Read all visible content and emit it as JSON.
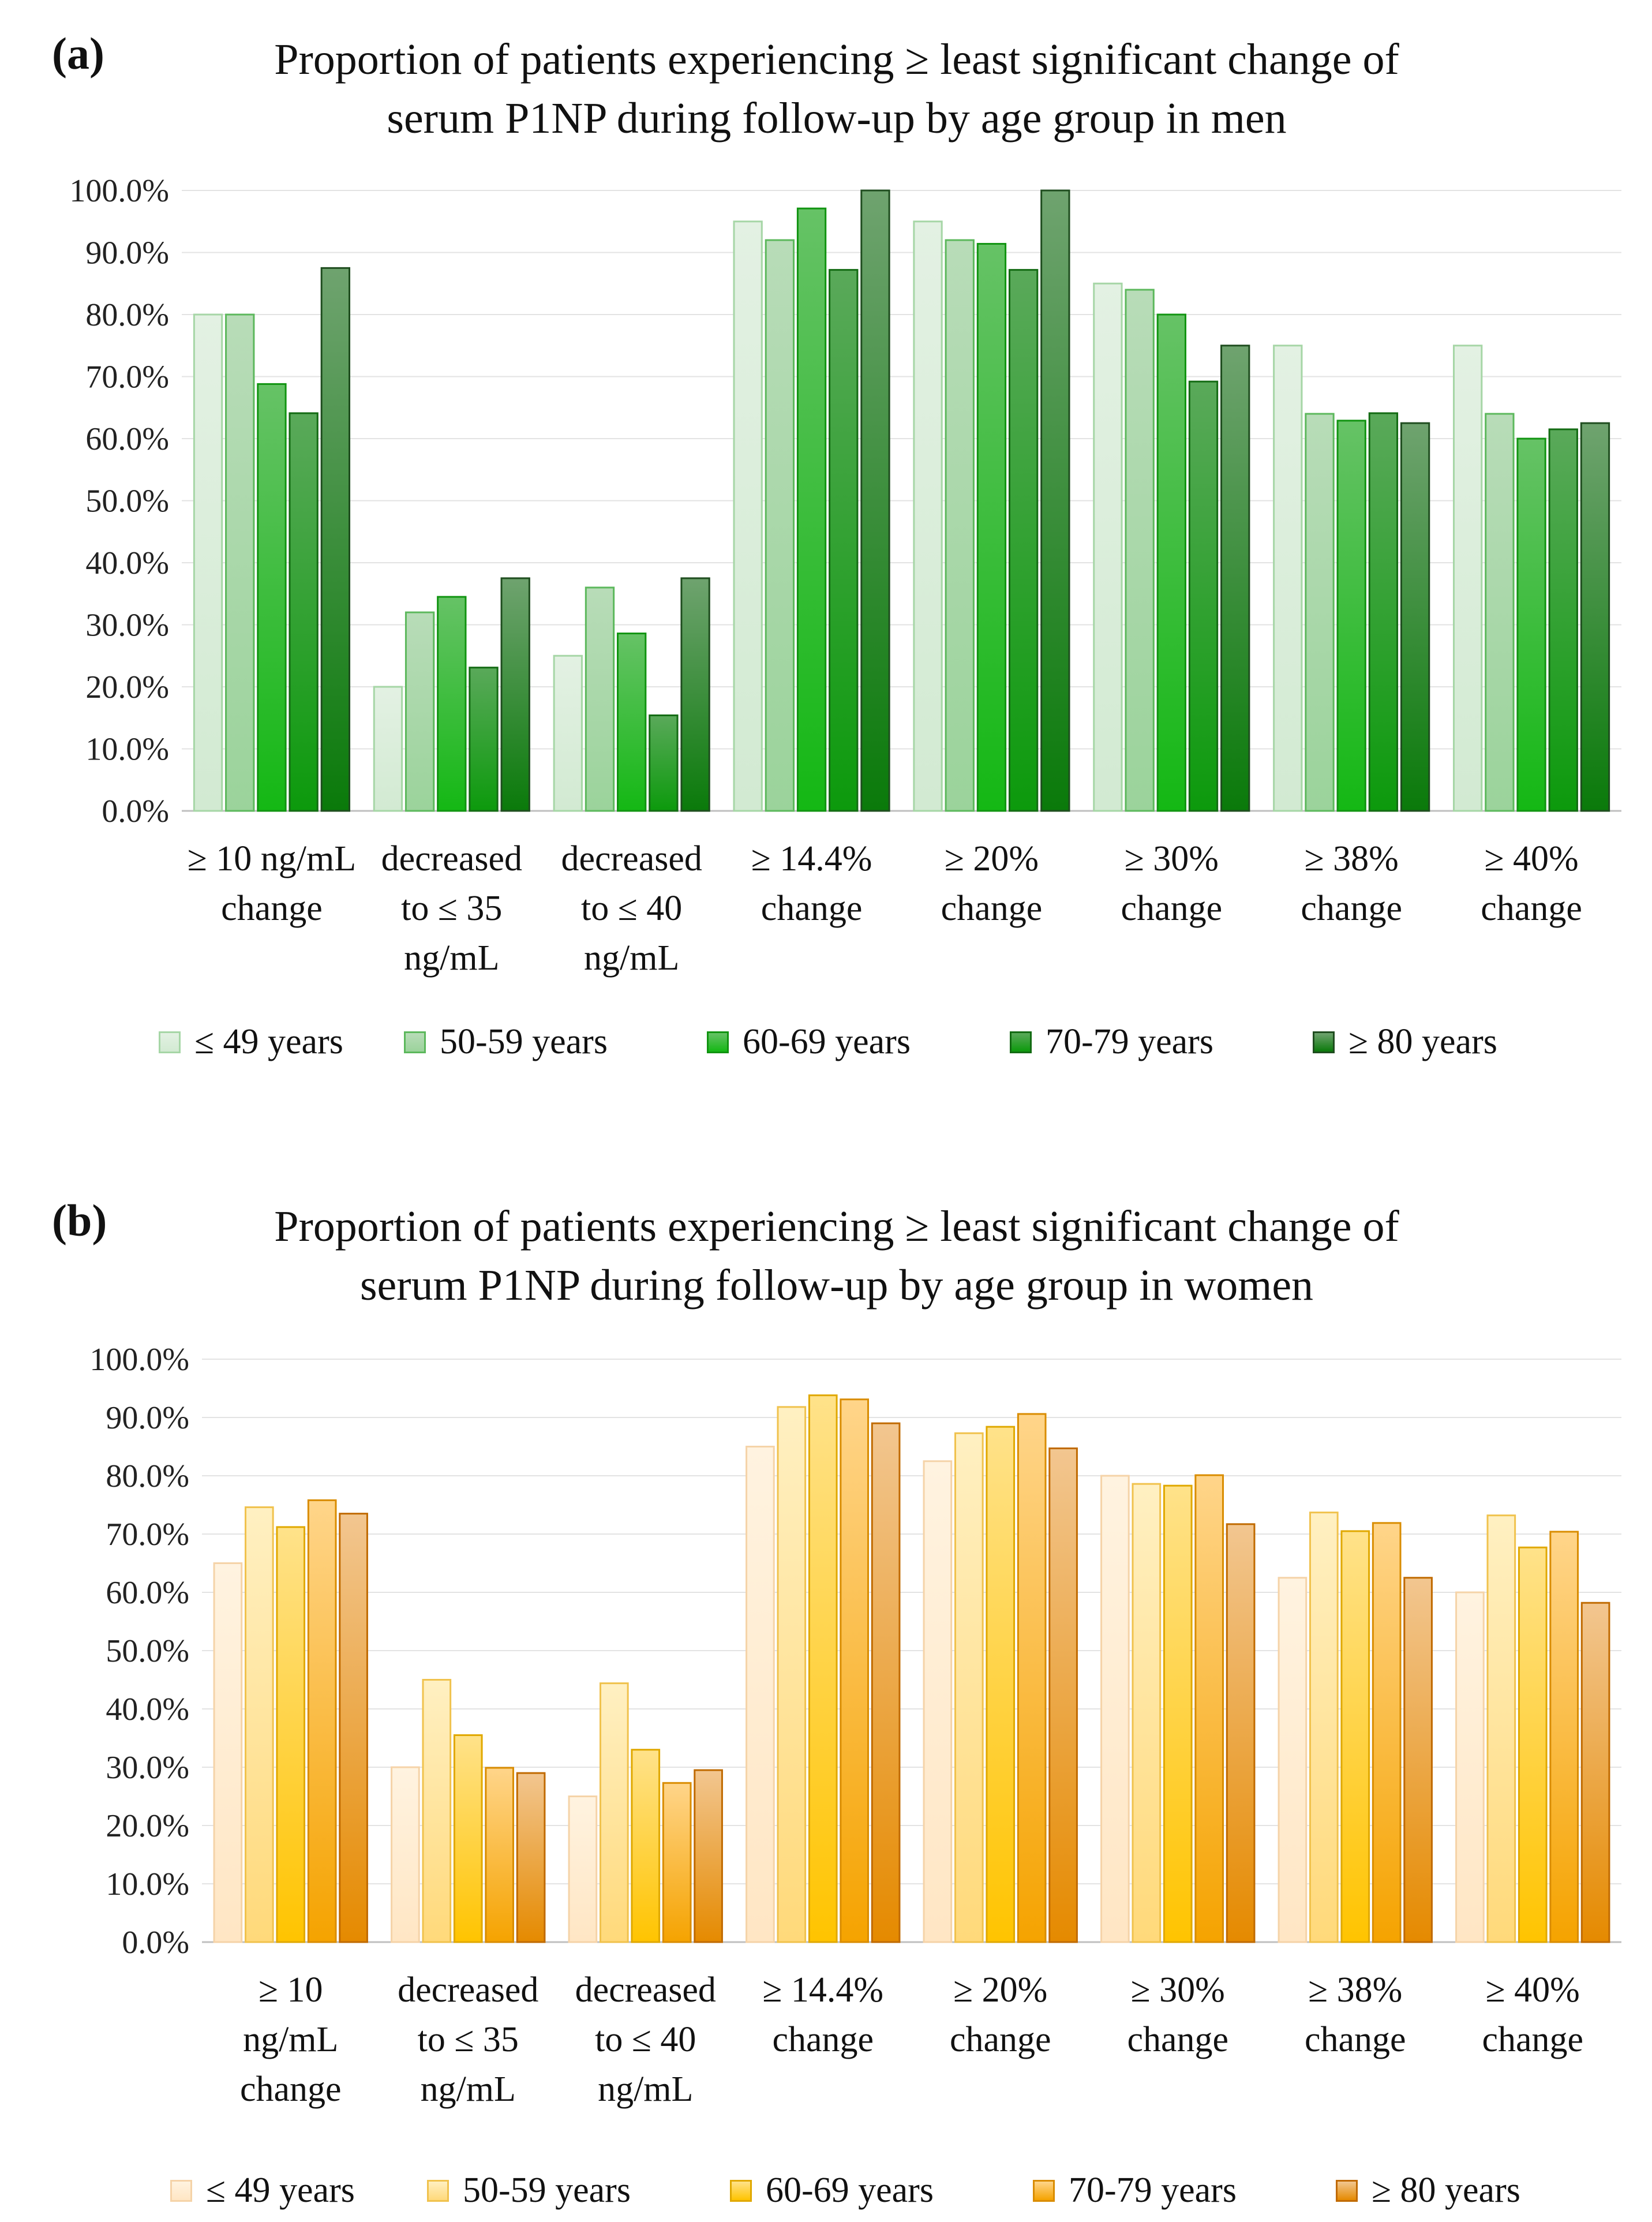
{
  "chart_data": [
    {
      "type": "bar",
      "panel_label": "(a)",
      "title_lines": [
        "Proportion of patients experiencing ≥ least significant change of",
        "serum P1NP during follow-up by age group in men"
      ],
      "title": "Proportion of patients experiencing ≥ least significant change of serum P1NP during follow-up by age group in men",
      "categories": [
        [
          "≥ 10 ng/mL",
          "change"
        ],
        [
          "decreased",
          "to ≤ 35",
          "ng/mL"
        ],
        [
          "decreased",
          "to ≤ 40",
          "ng/mL"
        ],
        [
          "≥ 14.4%",
          "change"
        ],
        [
          "≥ 20%",
          "change"
        ],
        [
          "≥ 30%",
          "change"
        ],
        [
          "≥ 38%",
          "change"
        ],
        [
          "≥ 40%",
          "change"
        ]
      ],
      "y_ticks": [
        "0.0%",
        "10.0%",
        "20.0%",
        "30.0%",
        "40.0%",
        "50.0%",
        "60.0%",
        "70.0%",
        "80.0%",
        "90.0%",
        "100.0%"
      ],
      "ylim": [
        0,
        100
      ],
      "xlabel": "",
      "ylabel": "",
      "legend_position": "bottom",
      "series": [
        {
          "name": "≤ 49 years",
          "values": [
            80,
            20,
            25,
            95,
            95,
            85,
            75,
            75
          ],
          "color_top": "#e3f1e3",
          "color_bottom": "#d2ead2",
          "border": "#a6d6a6"
        },
        {
          "name": "50-59 years",
          "values": [
            80,
            32,
            36,
            92,
            92,
            84,
            64,
            64
          ],
          "color_top": "#b8dcb8",
          "color_bottom": "#9bd39b",
          "border": "#5cb85c"
        },
        {
          "name": "60-69 years",
          "values": [
            68.8,
            34.5,
            28.6,
            97.1,
            91.4,
            80,
            62.9,
            60
          ],
          "color_top": "#66c266",
          "color_bottom": "#14b814",
          "border": "#119411"
        },
        {
          "name": "70-79 years",
          "values": [
            64.1,
            23.1,
            15.4,
            87.2,
            87.2,
            69.2,
            64.1,
            61.5
          ],
          "color_top": "#5aa95a",
          "color_bottom": "#0c9a0c",
          "border": "#136b13"
        },
        {
          "name": "≥ 80 years",
          "values": [
            87.5,
            37.5,
            37.5,
            100,
            100,
            75,
            62.5,
            62.5
          ],
          "color_top": "#6fa36f",
          "color_bottom": "#0a7a0a",
          "border": "#1f4d1f"
        }
      ]
    },
    {
      "type": "bar",
      "panel_label": "(b)",
      "title_lines": [
        "Proportion of patients experiencing ≥ least significant change of",
        "serum P1NP during follow-up by age group in women"
      ],
      "title": "Proportion of patients experiencing ≥ least significant change of serum P1NP during follow-up by age group in women",
      "categories": [
        [
          "≥ 10",
          "ng/mL",
          "change"
        ],
        [
          "decreased",
          "to ≤ 35",
          "ng/mL"
        ],
        [
          "decreased",
          "to ≤ 40",
          "ng/mL"
        ],
        [
          "≥ 14.4%",
          "change"
        ],
        [
          "≥ 20%",
          "change"
        ],
        [
          "≥ 30%",
          "change"
        ],
        [
          "≥ 38%",
          "change"
        ],
        [
          "≥ 40%",
          "change"
        ]
      ],
      "y_ticks": [
        "0.0%",
        "10.0%",
        "20.0%",
        "30.0%",
        "40.0%",
        "50.0%",
        "60.0%",
        "70.0%",
        "80.0%",
        "90.0%",
        "100.0%"
      ],
      "ylim": [
        0,
        100
      ],
      "xlabel": "",
      "ylabel": "",
      "legend_position": "bottom",
      "series": [
        {
          "name": "≤ 49 years",
          "values": [
            65,
            30,
            25,
            85,
            82.5,
            80,
            62.5,
            60
          ],
          "color_top": "#fff3e0",
          "color_bottom": "#ffe6c4",
          "border": "#f5d3a8"
        },
        {
          "name": "50-59 years",
          "values": [
            74.6,
            45,
            44.4,
            91.8,
            87.3,
            78.6,
            73.7,
            73.2
          ],
          "color_top": "#fff0c2",
          "color_bottom": "#ffd97a",
          "border": "#f0c24d"
        },
        {
          "name": "60-69 years",
          "values": [
            71.2,
            35.5,
            33,
            93.8,
            88.4,
            78.3,
            70.5,
            67.7
          ],
          "color_top": "#ffe28a",
          "color_bottom": "#ffc400",
          "border": "#e0a800"
        },
        {
          "name": "70-79 years",
          "values": [
            75.8,
            29.9,
            27.3,
            93.1,
            90.6,
            80.1,
            71.9,
            70.4
          ],
          "color_top": "#ffd58a",
          "color_bottom": "#f5a300",
          "border": "#d98c00"
        },
        {
          "name": "≥ 80 years",
          "values": [
            73.5,
            29,
            29.5,
            89,
            84.7,
            71.7,
            62.5,
            58.2
          ],
          "color_top": "#f2c690",
          "color_bottom": "#e58a00",
          "border": "#c06a00"
        }
      ]
    }
  ]
}
